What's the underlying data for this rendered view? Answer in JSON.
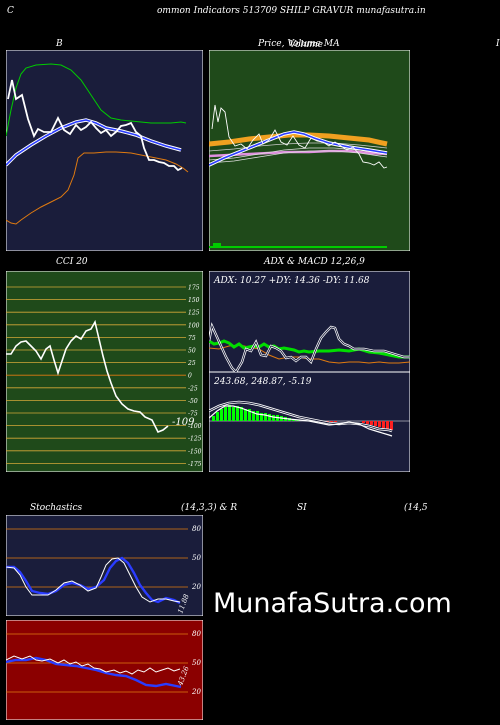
{
  "header": {
    "c_letter": "C",
    "title": "ommon  Indicators 513709 SHILP GRAVUR munafasutra.in",
    "right_letter": "I"
  },
  "panels": {
    "bollinger": {
      "title": "B"
    },
    "price_ma": {
      "title_prefix": "Price,",
      "title_overlap": "Volume",
      "title_suffix": "MA",
      "title_overlap2": "Volume"
    },
    "cci": {
      "title": "CCI 20",
      "current": "-109",
      "ticks": [
        "175",
        "150",
        "125",
        "100",
        "75",
        "50",
        "25",
        "0",
        "-25",
        "-50",
        "-75",
        "-100",
        "-125",
        "-150",
        "-175"
      ]
    },
    "adx_macd": {
      "title": "ADX  & MACD 12,26,9",
      "adx_text": "ADX: 10.27  +DY: 14.36  -DY: 11.68",
      "macd_text": "243.68,  248.87,  -5.19"
    },
    "stochastics": {
      "title_left": "Stochastics",
      "title_mid": "(14,3,3) & R",
      "title_si": "SI",
      "title_right": "(14,5",
      "stoch_ticks": [
        "80",
        "50",
        "20"
      ],
      "stoch_value": "11.88",
      "rsi_ticks": [
        "80",
        "50",
        "20"
      ],
      "rsi_value": "43.26"
    }
  },
  "watermark": "MunafaSutra.com",
  "colors": {
    "navy_panel": "#1a1d3b",
    "green_panel": "#1f4a1a",
    "maroon_panel": "#8b0000",
    "orange_line": "#e07a10",
    "green_line": "#00cc00",
    "blue_line": "#2a3cff",
    "cci_grid": "#d4a838"
  }
}
